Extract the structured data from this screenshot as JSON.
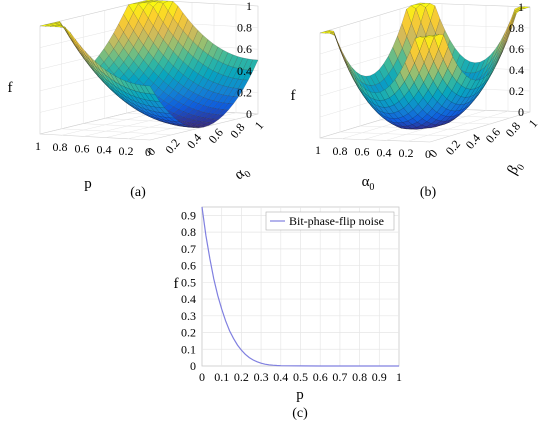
{
  "chart_data": [
    {
      "panel": "(a)",
      "type": "surface3d",
      "zlabel": "f",
      "xlabel": "p",
      "ylabel": "α0",
      "x_ticks": [
        "1",
        "0.8",
        "0.6",
        "0.4",
        "0.2",
        "0"
      ],
      "y_ticks": [
        "0",
        "0.2",
        "0.4",
        "0.6",
        "0.8",
        "1"
      ],
      "z_ticks": [
        "0",
        "0.2",
        "0.4",
        "0.6",
        "0.8",
        "1"
      ],
      "zlim": [
        0,
        1
      ],
      "colormap": "parula"
    },
    {
      "panel": "(b)",
      "type": "surface3d",
      "zlabel": "f",
      "xlabel": "α0",
      "ylabel": "β0",
      "x_ticks": [
        "1",
        "0.8",
        "0.6",
        "0.4",
        "0.2",
        "0"
      ],
      "y_ticks": [
        "0",
        "0.2",
        "0.4",
        "0.6",
        "0.8",
        "1"
      ],
      "z_ticks": [
        "0",
        "0.2",
        "0.4",
        "0.6",
        "0.8",
        "1"
      ],
      "zlim": [
        0,
        1
      ],
      "colormap": "parula"
    },
    {
      "panel": "(c)",
      "type": "line",
      "xlabel": "p",
      "ylabel": "f",
      "xlim": [
        0,
        1
      ],
      "ylim": [
        0,
        0.95
      ],
      "x_ticks": [
        "0",
        "0.1",
        "0.2",
        "0.3",
        "0.4",
        "0.5",
        "0.6",
        "0.7",
        "0.8",
        "0.9",
        "1"
      ],
      "y_ticks": [
        "0",
        "0.1",
        "0.2",
        "0.3",
        "0.4",
        "0.5",
        "0.6",
        "0.7",
        "0.8",
        "0.9"
      ],
      "grid": true,
      "legend": "top-right",
      "series": [
        {
          "name": "Bit-phase-flip noise",
          "color": "#8080e0",
          "x": [
            0,
            0.02,
            0.04,
            0.06,
            0.08,
            0.1,
            0.12,
            0.14,
            0.16,
            0.18,
            0.2,
            0.22,
            0.24,
            0.26,
            0.28,
            0.3,
            0.32,
            0.34,
            0.36,
            0.38,
            0.4,
            0.45,
            0.5,
            0.6,
            0.7,
            0.8,
            0.9,
            1.0
          ],
          "y": [
            0.95,
            0.78,
            0.64,
            0.52,
            0.42,
            0.34,
            0.27,
            0.21,
            0.165,
            0.125,
            0.095,
            0.07,
            0.05,
            0.036,
            0.025,
            0.017,
            0.011,
            0.007,
            0.005,
            0.003,
            0.002,
            0.001,
            0.0005,
            0.0002,
            0.0001,
            0.0,
            0.0,
            0.0
          ]
        }
      ]
    }
  ],
  "captions": {
    "a": "(a)",
    "b": "(b)",
    "c": "(c)"
  }
}
